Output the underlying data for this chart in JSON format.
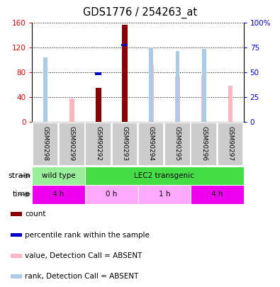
{
  "title": "GDS1776 / 254263_at",
  "samples": [
    "GSM90298",
    "GSM90299",
    "GSM90292",
    "GSM90293",
    "GSM90294",
    "GSM90295",
    "GSM90296",
    "GSM90297"
  ],
  "count_values": [
    0,
    0,
    55,
    157,
    0,
    0,
    0,
    0
  ],
  "rank_values": [
    0,
    0,
    50,
    79,
    0,
    0,
    0,
    0
  ],
  "value_absent": [
    62,
    38,
    0,
    0,
    92,
    74,
    76,
    58
  ],
  "rank_absent": [
    65,
    0,
    0,
    0,
    75,
    72,
    74,
    0
  ],
  "count_color": "#8B0000",
  "rank_color": "#0000CC",
  "value_absent_color": "#FFB6C1",
  "rank_absent_color": "#AACCE8",
  "yticks_left": [
    0,
    40,
    80,
    120,
    160
  ],
  "yticks_right": [
    0,
    25,
    50,
    75,
    100
  ],
  "yticklabels_right": [
    "0",
    "25",
    "50",
    "75",
    "100%"
  ],
  "legend_items": [
    {
      "color": "#8B0000",
      "label": "count"
    },
    {
      "color": "#0000CC",
      "label": "percentile rank within the sample"
    },
    {
      "color": "#FFB6C1",
      "label": "value, Detection Call = ABSENT"
    },
    {
      "color": "#AACCE8",
      "label": "rank, Detection Call = ABSENT"
    }
  ],
  "strain_segments": [
    {
      "text": "wild type",
      "xstart": -0.5,
      "xend": 1.5,
      "color": "#99EE99"
    },
    {
      "text": "LEC2 transgenic",
      "xstart": 1.5,
      "xend": 7.5,
      "color": "#44DD44"
    }
  ],
  "time_segments": [
    {
      "text": "4 h",
      "xstart": -0.5,
      "xend": 1.5,
      "color": "#EE00EE"
    },
    {
      "text": "0 h",
      "xstart": 1.5,
      "xend": 3.5,
      "color": "#FFAAFF"
    },
    {
      "text": "1 h",
      "xstart": 3.5,
      "xend": 5.5,
      "color": "#FFAAFF"
    },
    {
      "text": "4 h",
      "xstart": 5.5,
      "xend": 7.5,
      "color": "#EE00EE"
    }
  ]
}
